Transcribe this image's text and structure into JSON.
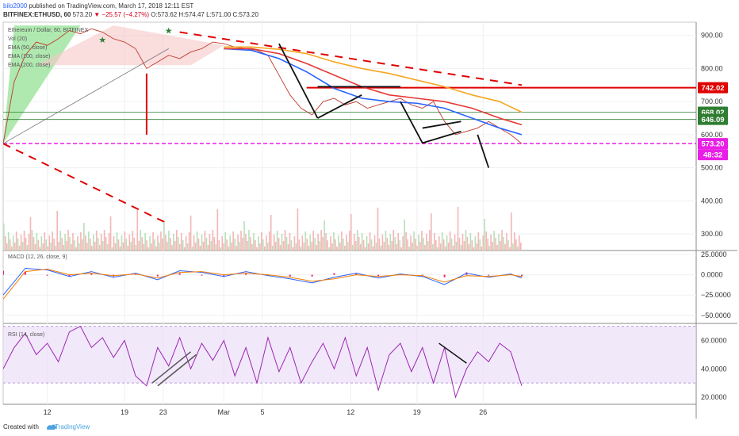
{
  "header": {
    "user": "bilo2000",
    "publish_text": "published on TradingView.com, March 17, 2018 12:11 EST",
    "symbol": "BITFINEX:ETHUSD, 60",
    "last": "573.20",
    "change": "▼ −25.57 (−4.27%)",
    "ohlc": "O:573.62 H:574.47 L:571.00 C:573.20"
  },
  "legend": {
    "title": "Ethereum / Dollar, 60, BITFINEX",
    "items": [
      "Vol (20)",
      "EMA (50, close)",
      "EMA (100, close)",
      "EMA (200, close)"
    ]
  },
  "price_axis": {
    "ticks": [
      "900.00",
      "800.00",
      "700.00",
      "600.00",
      "500.00",
      "400.00",
      "300.00"
    ],
    "badges": [
      {
        "text": "742.02",
        "color": "#e00000"
      },
      {
        "text": "668.02",
        "color": "#2e7d32"
      },
      {
        "text": "646.09",
        "color": "#2e7d32"
      },
      {
        "text": "573.20",
        "color": "#e91ee6"
      },
      {
        "text": "48:32",
        "color": "#e91ee6"
      }
    ]
  },
  "macd": {
    "label": "MACD (12, 26, close, 9)",
    "ticks": [
      "25.0000",
      "0.0000",
      "−25.0000",
      "−50.0000"
    ]
  },
  "rsi": {
    "label": "RSI (14, close)",
    "ticks": [
      "60.0000",
      "40.0000",
      "20.0000"
    ]
  },
  "time_axis": [
    "12",
    "19",
    "23",
    "Mar",
    "5",
    "12",
    "19",
    "26"
  ],
  "footer": {
    "created": "Created with",
    "brand": "TradingView"
  },
  "colors": {
    "ema50": "#2962ff",
    "ema100": "#e53935",
    "ema200": "#f5a623",
    "ema_extra": "#f48fb1",
    "resistance": "#e00000",
    "support_green": "#2e7d32",
    "current_price": "#e91ee6",
    "rsi": "#9c27b0",
    "rsi_band": "#e8d9f7"
  },
  "chart_data": {
    "type": "line",
    "title": "Ethereum / Dollar, 60, BITFINEX",
    "x_ticks": [
      "12",
      "19",
      "23",
      "Mar",
      "5",
      "12",
      "19",
      "26"
    ],
    "price": {
      "series": [
        {
          "name": "ETHUSD",
          "x": [
            0,
            2,
            4,
            6,
            8,
            10,
            12,
            14,
            16,
            18,
            20,
            22,
            24,
            26,
            28,
            30,
            32,
            34,
            36,
            38,
            40,
            42,
            44,
            46,
            48,
            50,
            52,
            54,
            56,
            58,
            60,
            62,
            64,
            66,
            68,
            70,
            72,
            74,
            76,
            78,
            80,
            82,
            84,
            86,
            88,
            90,
            92,
            94
          ],
          "values": [
            573,
            760,
            840,
            880,
            870,
            890,
            915,
            905,
            920,
            910,
            890,
            880,
            860,
            800,
            820,
            840,
            830,
            850,
            860,
            880,
            875,
            865,
            860,
            855,
            840,
            780,
            720,
            680,
            660,
            700,
            710,
            690,
            700,
            680,
            690,
            700,
            710,
            690,
            680,
            700,
            640,
            600,
            610,
            620,
            640,
            620,
            600,
            573
          ]
        },
        {
          "name": "EMA (50, close)",
          "x": [
            40,
            45,
            50,
            55,
            60,
            65,
            70,
            75,
            80,
            85,
            90,
            94
          ],
          "values": [
            860,
            855,
            830,
            790,
            740,
            710,
            700,
            695,
            680,
            650,
            620,
            600
          ]
        },
        {
          "name": "EMA (100, close)",
          "x": [
            40,
            45,
            50,
            55,
            60,
            65,
            70,
            75,
            80,
            85,
            90,
            94
          ],
          "values": [
            860,
            860,
            845,
            815,
            780,
            745,
            720,
            710,
            700,
            680,
            650,
            630
          ]
        },
        {
          "name": "EMA (200, close)",
          "x": [
            40,
            45,
            50,
            55,
            60,
            65,
            70,
            75,
            80,
            85,
            90,
            94
          ],
          "values": [
            865,
            865,
            858,
            845,
            820,
            800,
            785,
            765,
            745,
            720,
            700,
            668
          ]
        }
      ],
      "ylim": [
        250,
        940
      ],
      "levels": [
        742.02,
        668.02,
        646.09,
        573.2
      ]
    },
    "macd": {
      "ylim": [
        -60,
        30
      ],
      "series": [
        {
          "name": "MACD",
          "x": [
            0,
            4,
            8,
            12,
            16,
            20,
            24,
            28,
            32,
            36,
            40,
            44,
            48,
            52,
            56,
            60,
            64,
            68,
            72,
            76,
            80,
            84,
            88,
            92,
            94
          ],
          "values": [
            -25,
            8,
            6,
            -2,
            4,
            -3,
            2,
            -6,
            5,
            3,
            -2,
            4,
            -1,
            -5,
            -10,
            -3,
            2,
            -4,
            1,
            -2,
            -12,
            2,
            -3,
            1,
            -4
          ]
        },
        {
          "name": "Signal",
          "x": [
            0,
            4,
            8,
            12,
            16,
            20,
            24,
            28,
            32,
            36,
            40,
            44,
            48,
            52,
            56,
            60,
            64,
            68,
            72,
            76,
            80,
            84,
            88,
            92,
            94
          ],
          "values": [
            -30,
            4,
            7,
            0,
            2,
            -1,
            1,
            -4,
            3,
            4,
            0,
            2,
            0,
            -3,
            -8,
            -5,
            0,
            -2,
            0,
            -1,
            -9,
            -1,
            -2,
            0,
            -2
          ]
        }
      ]
    },
    "rsi": {
      "ylim": [
        15,
        72
      ],
      "band": [
        30,
        70
      ],
      "series": [
        {
          "name": "RSI (14, close)",
          "x": [
            0,
            2,
            4,
            6,
            8,
            10,
            12,
            14,
            16,
            18,
            20,
            22,
            24,
            26,
            28,
            30,
            32,
            34,
            36,
            38,
            40,
            42,
            44,
            46,
            48,
            50,
            52,
            54,
            56,
            58,
            60,
            62,
            64,
            66,
            68,
            70,
            72,
            74,
            76,
            78,
            80,
            82,
            84,
            86,
            88,
            90,
            92,
            94
          ],
          "values": [
            40,
            55,
            65,
            50,
            58,
            45,
            66,
            70,
            55,
            62,
            48,
            60,
            35,
            28,
            55,
            42,
            62,
            40,
            58,
            46,
            60,
            35,
            55,
            30,
            62,
            38,
            55,
            30,
            45,
            58,
            40,
            62,
            35,
            55,
            25,
            50,
            58,
            38,
            55,
            30,
            55,
            20,
            40,
            52,
            45,
            58,
            52,
            28
          ]
        }
      ]
    }
  }
}
